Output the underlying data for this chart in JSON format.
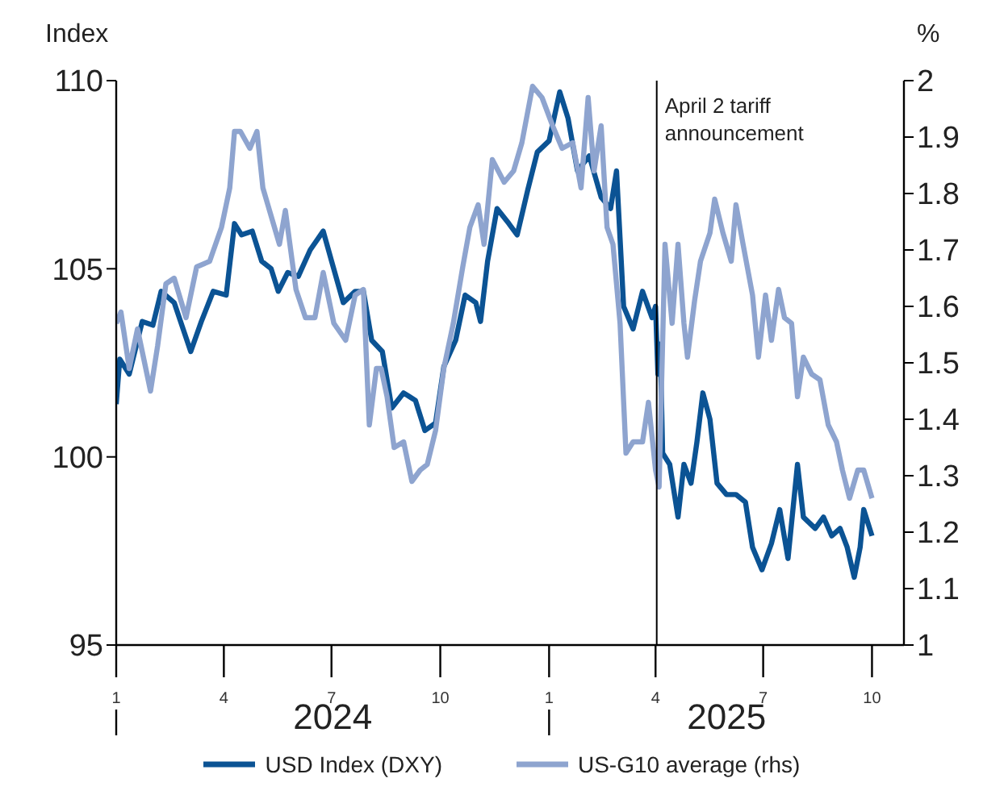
{
  "chart_data": {
    "type": "line",
    "ylabel": "Index",
    "y2label": "%",
    "xlim": [
      "2024-01-01",
      "2025-10-28"
    ],
    "xticks": [
      {
        "value": "2024-01-01",
        "label": "1"
      },
      {
        "value": "2024-04-01",
        "label": "4"
      },
      {
        "value": "2024-07-01",
        "label": "7"
      },
      {
        "value": "2024-10-01",
        "label": "10"
      },
      {
        "value": "2025-01-01",
        "label": "1"
      },
      {
        "value": "2025-04-01",
        "label": "4"
      },
      {
        "value": "2025-07-01",
        "label": "7"
      },
      {
        "value": "2025-10-01",
        "label": "10"
      }
    ],
    "ylim": [
      95,
      110
    ],
    "yticks": [
      95,
      100,
      105,
      110
    ],
    "y2lim": [
      1,
      2
    ],
    "y2ticks": [
      1,
      1.1,
      1.2,
      1.3,
      1.4,
      1.5,
      1.6,
      1.7,
      1.8,
      1.9,
      2
    ],
    "legend": "bottom",
    "line_style": "solid",
    "marker": "none",
    "annotations": [
      "2024",
      "2025"
    ],
    "ref_lines": [
      {
        "axis": "x",
        "value": "2025-04-02",
        "label": "April 2 tariff announcement",
        "color": "#000000"
      }
    ],
    "series": [
      {
        "name": "USD Index (DXY)",
        "color": "#0b5394",
        "x": [
          "2024-01-01",
          "2024-01-04",
          "2024-01-12",
          "2024-01-23",
          "2024-02-01",
          "2024-02-08",
          "2024-02-19",
          "2024-03-04",
          "2024-03-13",
          "2024-03-23",
          "2024-04-03",
          "2024-04-10",
          "2024-04-16",
          "2024-04-25",
          "2024-05-03",
          "2024-05-11",
          "2024-05-17",
          "2024-05-25",
          "2024-06-03",
          "2024-06-13",
          "2024-06-24",
          "2024-07-02",
          "2024-07-11",
          "2024-07-21",
          "2024-07-28",
          "2024-08-04",
          "2024-08-13",
          "2024-08-21",
          "2024-08-31",
          "2024-09-10",
          "2024-09-18",
          "2024-09-27",
          "2024-10-04",
          "2024-10-14",
          "2024-10-22",
          "2024-10-31",
          "2024-11-04",
          "2024-11-10",
          "2024-11-18",
          "2024-11-28",
          "2024-12-05",
          "2024-12-14",
          "2024-12-22",
          "2025-01-01",
          "2025-01-10",
          "2025-01-17",
          "2025-01-25",
          "2025-02-04",
          "2025-02-14",
          "2025-02-22",
          "2025-02-27",
          "2025-03-05",
          "2025-03-13",
          "2025-03-21",
          "2025-03-29",
          "2025-04-01",
          "2025-04-03",
          "2025-04-05",
          "2025-04-07",
          "2025-04-13",
          "2025-04-20",
          "2025-04-25",
          "2025-05-01",
          "2025-05-06",
          "2025-05-11",
          "2025-05-17",
          "2025-05-23",
          "2025-05-31",
          "2025-06-08",
          "2025-06-16",
          "2025-06-22",
          "2025-06-30",
          "2025-07-08",
          "2025-07-15",
          "2025-07-22",
          "2025-07-30",
          "2025-08-04",
          "2025-08-14",
          "2025-08-21",
          "2025-08-28",
          "2025-09-04",
          "2025-09-10",
          "2025-09-16",
          "2025-09-21",
          "2025-09-24",
          "2025-10-01"
        ],
        "values": [
          101.4,
          102.6,
          102.2,
          103.6,
          103.5,
          104.4,
          104.1,
          102.8,
          103.6,
          104.4,
          104.3,
          106.2,
          105.9,
          106.0,
          105.2,
          105.0,
          104.4,
          104.9,
          104.8,
          105.5,
          106.0,
          105.1,
          104.1,
          104.4,
          104.4,
          103.1,
          102.8,
          101.3,
          101.7,
          101.5,
          100.7,
          100.9,
          102.4,
          103.1,
          104.3,
          104.1,
          103.6,
          105.2,
          106.6,
          106.2,
          105.9,
          107.1,
          108.1,
          108.4,
          109.7,
          109.0,
          107.6,
          108.0,
          106.9,
          106.6,
          107.6,
          104.0,
          103.4,
          104.4,
          103.7,
          104.0,
          102.2,
          103.0,
          100.1,
          99.8,
          98.4,
          99.8,
          99.3,
          100.4,
          101.7,
          101.0,
          99.3,
          99.0,
          99.0,
          98.8,
          97.6,
          97.0,
          97.7,
          98.6,
          97.3,
          99.8,
          98.4,
          98.1,
          98.4,
          97.9,
          98.1,
          97.6,
          96.8,
          97.6,
          98.6,
          97.9
        ]
      },
      {
        "name": "US-G10 average (rhs)",
        "color": "#8ea4cf",
        "axis": "y2",
        "x": [
          "2024-01-01",
          "2024-01-05",
          "2024-01-12",
          "2024-01-19",
          "2024-01-30",
          "2024-02-05",
          "2024-02-12",
          "2024-02-19",
          "2024-02-29",
          "2024-03-09",
          "2024-03-20",
          "2024-03-30",
          "2024-04-06",
          "2024-04-10",
          "2024-04-15",
          "2024-04-23",
          "2024-04-29",
          "2024-05-04",
          "2024-05-11",
          "2024-05-18",
          "2024-05-23",
          "2024-06-01",
          "2024-06-09",
          "2024-06-17",
          "2024-06-24",
          "2024-07-03",
          "2024-07-13",
          "2024-07-21",
          "2024-07-28",
          "2024-08-02",
          "2024-08-08",
          "2024-08-12",
          "2024-08-17",
          "2024-08-23",
          "2024-08-31",
          "2024-09-07",
          "2024-09-14",
          "2024-09-20",
          "2024-09-27",
          "2024-10-04",
          "2024-10-12",
          "2024-10-20",
          "2024-10-26",
          "2024-11-02",
          "2024-11-07",
          "2024-11-14",
          "2024-11-24",
          "2024-12-02",
          "2024-12-09",
          "2024-12-18",
          "2024-12-26",
          "2025-01-04",
          "2025-01-12",
          "2025-01-21",
          "2025-01-28",
          "2025-02-03",
          "2025-02-08",
          "2025-02-14",
          "2025-02-19",
          "2025-02-24",
          "2025-03-02",
          "2025-03-07",
          "2025-03-13",
          "2025-03-21",
          "2025-03-26",
          "2025-04-01",
          "2025-04-04",
          "2025-04-09",
          "2025-04-15",
          "2025-04-20",
          "2025-04-25",
          "2025-04-28",
          "2025-05-04",
          "2025-05-09",
          "2025-05-17",
          "2025-05-21",
          "2025-05-28",
          "2025-06-04",
          "2025-06-08",
          "2025-06-14",
          "2025-06-22",
          "2025-06-27",
          "2025-07-03",
          "2025-07-08",
          "2025-07-14",
          "2025-07-19",
          "2025-07-25",
          "2025-07-30",
          "2025-08-04",
          "2025-08-11",
          "2025-08-18",
          "2025-08-25",
          "2025-09-01",
          "2025-09-06",
          "2025-09-12",
          "2025-09-19",
          "2025-09-24",
          "2025-10-01"
        ],
        "values": [
          1.57,
          1.59,
          1.49,
          1.56,
          1.45,
          1.53,
          1.64,
          1.65,
          1.58,
          1.67,
          1.68,
          1.74,
          1.81,
          1.91,
          1.91,
          1.88,
          1.91,
          1.81,
          1.76,
          1.71,
          1.77,
          1.63,
          1.58,
          1.58,
          1.66,
          1.57,
          1.54,
          1.62,
          1.63,
          1.39,
          1.49,
          1.49,
          1.44,
          1.35,
          1.36,
          1.29,
          1.31,
          1.32,
          1.38,
          1.49,
          1.57,
          1.67,
          1.74,
          1.78,
          1.71,
          1.86,
          1.82,
          1.84,
          1.89,
          1.99,
          1.97,
          1.92,
          1.88,
          1.89,
          1.81,
          1.97,
          1.84,
          1.92,
          1.74,
          1.71,
          1.57,
          1.34,
          1.36,
          1.36,
          1.43,
          1.31,
          1.28,
          1.71,
          1.57,
          1.71,
          1.57,
          1.51,
          1.61,
          1.68,
          1.73,
          1.79,
          1.73,
          1.68,
          1.78,
          1.71,
          1.62,
          1.51,
          1.62,
          1.54,
          1.63,
          1.58,
          1.57,
          1.44,
          1.51,
          1.48,
          1.47,
          1.39,
          1.36,
          1.31,
          1.26,
          1.31,
          1.31,
          1.26
        ]
      }
    ]
  }
}
